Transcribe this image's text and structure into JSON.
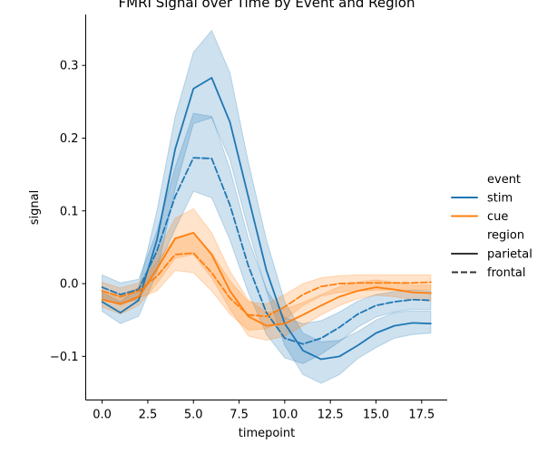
{
  "chart_data": {
    "type": "line",
    "title": "FMRI Signal over Time by Event and Region",
    "xlabel": "timepoint",
    "ylabel": "signal",
    "xlim": [
      -0.9,
      18.9
    ],
    "ylim": [
      -0.16,
      0.37
    ],
    "xticks": [
      0,
      2.5,
      5,
      7.5,
      10,
      12.5,
      15,
      17.5
    ],
    "xtick_labels": [
      "0.0",
      "2.5",
      "5.0",
      "7.5",
      "10.0",
      "12.5",
      "15.0",
      "17.5"
    ],
    "yticks": [
      -0.1,
      0.0,
      0.1,
      0.2,
      0.3
    ],
    "ytick_labels": [
      "−0.1",
      "0.0",
      "0.1",
      "0.2",
      "0.3"
    ],
    "grid": false,
    "legend": {
      "placement": "right",
      "hue_title": "event",
      "style_title": "region",
      "hue_entries": [
        {
          "label": "stim",
          "color": "#1f77b4"
        },
        {
          "label": "cue",
          "color": "#ff7f0e"
        }
      ],
      "style_entries": [
        {
          "label": "parietal",
          "dash": "solid"
        },
        {
          "label": "frontal",
          "dash": "dashed"
        }
      ]
    },
    "x": [
      0,
      1,
      2,
      3,
      4,
      5,
      6,
      7,
      8,
      9,
      10,
      11,
      12,
      13,
      14,
      15,
      16,
      17,
      18
    ],
    "series": [
      {
        "name": "stim parietal",
        "color": "#1f77b4",
        "dash": "solid",
        "values": [
          -0.025,
          -0.04,
          -0.023,
          0.06,
          0.185,
          0.268,
          0.283,
          0.222,
          0.12,
          0.018,
          -0.055,
          -0.092,
          -0.104,
          -0.1,
          -0.085,
          -0.068,
          -0.058,
          -0.054,
          -0.055
        ],
        "ci_lower": [
          -0.038,
          -0.055,
          -0.045,
          0.015,
          0.13,
          0.22,
          0.228,
          0.17,
          0.075,
          -0.01,
          -0.085,
          -0.125,
          -0.137,
          -0.125,
          -0.103,
          -0.088,
          -0.075,
          -0.07,
          -0.068
        ],
        "ci_upper": [
          -0.012,
          -0.025,
          -0.005,
          0.1,
          0.23,
          0.318,
          0.348,
          0.29,
          0.168,
          0.06,
          -0.025,
          -0.068,
          -0.08,
          -0.078,
          -0.066,
          -0.05,
          -0.04,
          -0.037,
          -0.038
        ]
      },
      {
        "name": "stim frontal",
        "color": "#1f77b4",
        "dash": "dashed",
        "values": [
          -0.005,
          -0.015,
          -0.008,
          0.045,
          0.12,
          0.173,
          0.172,
          0.108,
          0.025,
          -0.04,
          -0.075,
          -0.083,
          -0.075,
          -0.06,
          -0.042,
          -0.03,
          -0.025,
          -0.022,
          -0.023
        ],
        "ci_lower": [
          -0.022,
          -0.027,
          -0.022,
          0.02,
          0.075,
          0.127,
          0.118,
          0.06,
          -0.012,
          -0.07,
          -0.102,
          -0.11,
          -0.097,
          -0.08,
          -0.06,
          -0.046,
          -0.039,
          -0.035,
          -0.036
        ],
        "ci_upper": [
          0.012,
          0.001,
          0.006,
          0.072,
          0.16,
          0.234,
          0.23,
          0.158,
          0.063,
          -0.008,
          -0.047,
          -0.055,
          -0.051,
          -0.039,
          -0.024,
          -0.015,
          -0.011,
          -0.009,
          -0.01
        ]
      },
      {
        "name": "cue parietal",
        "color": "#ff7f0e",
        "dash": "solid",
        "values": [
          -0.022,
          -0.028,
          -0.018,
          0.02,
          0.062,
          0.07,
          0.04,
          -0.01,
          -0.045,
          -0.058,
          -0.055,
          -0.043,
          -0.03,
          -0.018,
          -0.01,
          -0.005,
          -0.008,
          -0.012,
          -0.013
        ],
        "ci_lower": [
          -0.032,
          -0.042,
          -0.03,
          0.0,
          0.035,
          0.04,
          0.008,
          -0.035,
          -0.072,
          -0.078,
          -0.072,
          -0.058,
          -0.043,
          -0.03,
          -0.021,
          -0.016,
          -0.018,
          -0.022,
          -0.024
        ],
        "ci_upper": [
          -0.01,
          -0.016,
          -0.006,
          0.042,
          0.09,
          0.103,
          0.07,
          0.017,
          -0.022,
          -0.04,
          -0.035,
          -0.026,
          -0.015,
          -0.004,
          0.002,
          0.005,
          0.002,
          -0.002,
          -0.002
        ]
      },
      {
        "name": "cue frontal",
        "color": "#ff7f0e",
        "dash": "dashed",
        "values": [
          -0.01,
          -0.018,
          -0.01,
          0.01,
          0.04,
          0.042,
          0.015,
          -0.02,
          -0.043,
          -0.045,
          -0.032,
          -0.015,
          -0.004,
          0.0,
          0.001,
          0.001,
          0.001,
          0.001,
          0.002
        ],
        "ci_lower": [
          -0.02,
          -0.03,
          -0.02,
          -0.01,
          0.018,
          0.015,
          -0.01,
          -0.042,
          -0.064,
          -0.062,
          -0.05,
          -0.03,
          -0.017,
          -0.012,
          -0.01,
          -0.009,
          -0.009,
          -0.009,
          -0.008
        ],
        "ci_upper": [
          0.002,
          -0.006,
          0.001,
          0.03,
          0.063,
          0.07,
          0.042,
          0.004,
          -0.025,
          -0.028,
          -0.015,
          0.0,
          0.008,
          0.011,
          0.012,
          0.012,
          0.012,
          0.012,
          0.012
        ]
      }
    ]
  }
}
